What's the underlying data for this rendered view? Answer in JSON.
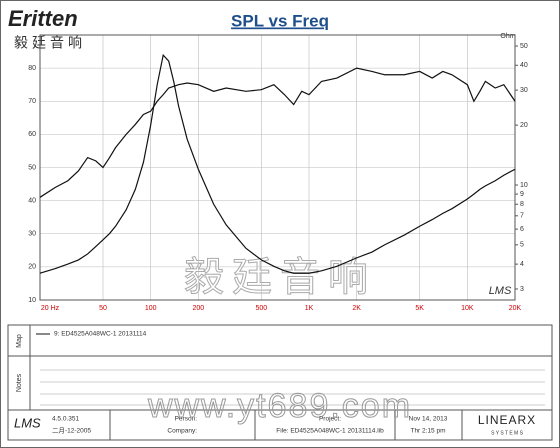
{
  "logo": {
    "brand": "Eritten",
    "chinese": "毅廷音响"
  },
  "chart_data": {
    "type": "line",
    "title": "SPL vs Freq",
    "y2_label": "Ohm",
    "corner_mark": "LMS",
    "xlog": true,
    "y2log": true,
    "grid": true,
    "xlim": [
      20,
      20000
    ],
    "xticks": [
      {
        "value": 20,
        "label": "20 Hz"
      },
      50,
      100,
      200,
      500,
      {
        "value": 1000,
        "label": "1K"
      },
      {
        "value": 2000,
        "label": "2K"
      },
      {
        "value": 5000,
        "label": "5K"
      },
      {
        "value": 10000,
        "label": "10K"
      },
      {
        "value": 20000,
        "label": "20K"
      }
    ],
    "ylim": [
      10,
      90
    ],
    "yticks": [
      10,
      20,
      30,
      40,
      50,
      60,
      70,
      80
    ],
    "y2lim": [
      2.64,
      56.8
    ],
    "y2ticks": [
      3,
      4,
      5,
      6,
      7,
      8,
      9,
      10,
      20,
      30,
      40,
      50
    ],
    "x": [
      20,
      25,
      30,
      35,
      40,
      45,
      50,
      55,
      60,
      70,
      80,
      90,
      100,
      110,
      120,
      130,
      140,
      150,
      170,
      200,
      250,
      300,
      400,
      500,
      600,
      700,
      800,
      900,
      1000,
      1200,
      1500,
      2000,
      2500,
      3000,
      4000,
      5000,
      6000,
      7000,
      8000,
      10000,
      11000,
      12000,
      13000,
      15000,
      17000,
      20000
    ],
    "series": [
      {
        "color": "#111111",
        "values": [
          41,
          44,
          46,
          49,
          53,
          52,
          50,
          53,
          56,
          60,
          63,
          66,
          67,
          70,
          72,
          74,
          74.5,
          75,
          75.5,
          75,
          73,
          74,
          73,
          73.5,
          75,
          72,
          69,
          73,
          72,
          76,
          77,
          80,
          79,
          78,
          78,
          79,
          77,
          79,
          78,
          75,
          70,
          73,
          76,
          74,
          75,
          70
        ]
      },
      {
        "color": "#111111",
        "axis": "y2",
        "values": [
          3.6,
          3.8,
          4.0,
          4.2,
          4.5,
          4.9,
          5.3,
          5.7,
          6.2,
          7.5,
          9.5,
          13,
          20,
          32,
          45,
          42,
          33,
          25,
          17,
          12,
          8,
          6.3,
          4.8,
          4.2,
          3.9,
          3.7,
          3.6,
          3.6,
          3.6,
          3.7,
          3.9,
          4.3,
          4.6,
          5.0,
          5.6,
          6.2,
          6.7,
          7.2,
          7.6,
          8.5,
          9.0,
          9.5,
          9.9,
          10.5,
          11.2,
          12
        ]
      }
    ]
  },
  "map": {
    "label": "Map",
    "entry": "9: ED4525A048WC-1  20131114"
  },
  "notes": {
    "label": "Notes"
  },
  "watermark": {
    "chinese": "毅廷音响",
    "url": "www.yt689.com"
  },
  "footer": {
    "software": "LMS",
    "version": "4.5.0.351",
    "date": "二月-12-2005",
    "person": "Person:",
    "company": "Company:",
    "project": "Project:",
    "file": "File: ED4525A048WC-1 20131114.lib",
    "print_date": "Nov 14, 2013",
    "print_time": "Thr  2:15 pm",
    "brand": "LINEARX",
    "brand_sub": "S Y S T E M S"
  }
}
